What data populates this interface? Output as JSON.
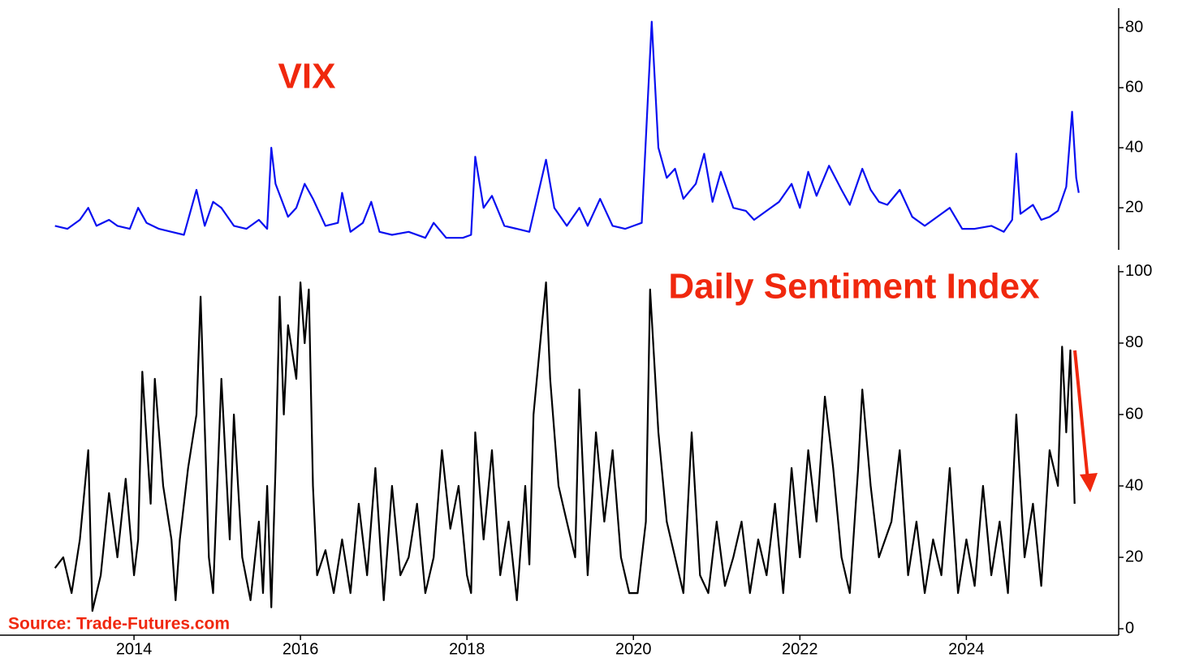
{
  "chart_data": [
    {
      "type": "line",
      "title": "VIX",
      "series": [
        {
          "name": "VIX",
          "color": "#0a10f0",
          "x": [
            2013.05,
            2013.2,
            2013.35,
            2013.45,
            2013.55,
            2013.7,
            2013.8,
            2013.95,
            2014.05,
            2014.15,
            2014.3,
            2014.45,
            2014.6,
            2014.75,
            2014.85,
            2014.95,
            2015.05,
            2015.2,
            2015.35,
            2015.5,
            2015.6,
            2015.65,
            2015.7,
            2015.85,
            2015.95,
            2016.05,
            2016.15,
            2016.3,
            2016.45,
            2016.5,
            2016.6,
            2016.75,
            2016.85,
            2016.95,
            2017.1,
            2017.3,
            2017.5,
            2017.6,
            2017.75,
            2017.95,
            2018.05,
            2018.1,
            2018.2,
            2018.3,
            2018.45,
            2018.6,
            2018.75,
            2018.85,
            2018.95,
            2019.05,
            2019.2,
            2019.35,
            2019.45,
            2019.6,
            2019.75,
            2019.9,
            2020.0,
            2020.1,
            2020.18,
            2020.22,
            2020.3,
            2020.4,
            2020.5,
            2020.6,
            2020.75,
            2020.85,
            2020.95,
            2021.05,
            2021.2,
            2021.35,
            2021.45,
            2021.6,
            2021.75,
            2021.9,
            2022.0,
            2022.1,
            2022.2,
            2022.35,
            2022.5,
            2022.6,
            2022.75,
            2022.85,
            2022.95,
            2023.05,
            2023.2,
            2023.35,
            2023.5,
            2023.7,
            2023.8,
            2023.95,
            2024.1,
            2024.3,
            2024.45,
            2024.55,
            2024.6,
            2024.65,
            2024.8,
            2024.9,
            2025.0,
            2025.1,
            2025.2,
            2025.27,
            2025.32,
            2025.35
          ],
          "values": [
            14,
            13,
            16,
            20,
            14,
            16,
            14,
            13,
            20,
            15,
            13,
            12,
            11,
            26,
            14,
            22,
            20,
            14,
            13,
            16,
            13,
            40,
            28,
            17,
            20,
            28,
            23,
            14,
            15,
            25,
            12,
            15,
            22,
            12,
            11,
            12,
            10,
            15,
            10,
            10,
            11,
            37,
            20,
            24,
            14,
            13,
            12,
            24,
            36,
            20,
            14,
            20,
            14,
            23,
            14,
            13,
            14,
            15,
            60,
            82,
            40,
            30,
            33,
            23,
            28,
            38,
            22,
            32,
            20,
            19,
            16,
            19,
            22,
            28,
            20,
            32,
            24,
            34,
            26,
            21,
            33,
            26,
            22,
            21,
            26,
            17,
            14,
            18,
            20,
            13,
            13,
            14,
            12,
            16,
            38,
            18,
            21,
            16,
            17,
            19,
            27,
            52,
            30,
            25
          ]
        }
      ],
      "xlim": [
        2012.39,
        2025.83
      ],
      "ylim": [
        6,
        86.5
      ],
      "yticks": [
        20,
        40,
        60,
        80
      ]
    },
    {
      "type": "line",
      "title": "Daily Sentiment Index",
      "annotation": "Source: Trade-Futures.com",
      "series": [
        {
          "name": "Daily Sentiment Index",
          "color": "#000000",
          "x": [
            2013.05,
            2013.15,
            2013.25,
            2013.35,
            2013.45,
            2013.5,
            2013.6,
            2013.7,
            2013.8,
            2013.9,
            2014.0,
            2014.05,
            2014.1,
            2014.2,
            2014.25,
            2014.35,
            2014.45,
            2014.5,
            2014.55,
            2014.65,
            2014.75,
            2014.8,
            2014.9,
            2014.95,
            2015.05,
            2015.15,
            2015.2,
            2015.3,
            2015.4,
            2015.5,
            2015.55,
            2015.6,
            2015.65,
            2015.7,
            2015.75,
            2015.8,
            2015.85,
            2015.95,
            2016.0,
            2016.05,
            2016.1,
            2016.15,
            2016.2,
            2016.3,
            2016.4,
            2016.5,
            2016.6,
            2016.7,
            2016.8,
            2016.9,
            2017.0,
            2017.1,
            2017.2,
            2017.3,
            2017.4,
            2017.5,
            2017.6,
            2017.7,
            2017.8,
            2017.9,
            2018.0,
            2018.05,
            2018.1,
            2018.2,
            2018.3,
            2018.4,
            2018.5,
            2018.6,
            2018.7,
            2018.75,
            2018.8,
            2018.9,
            2018.95,
            2019.0,
            2019.1,
            2019.2,
            2019.3,
            2019.35,
            2019.45,
            2019.55,
            2019.65,
            2019.75,
            2019.85,
            2019.95,
            2020.05,
            2020.15,
            2020.2,
            2020.3,
            2020.4,
            2020.5,
            2020.6,
            2020.7,
            2020.8,
            2020.9,
            2021.0,
            2021.1,
            2021.2,
            2021.3,
            2021.4,
            2021.5,
            2021.6,
            2021.7,
            2021.8,
            2021.9,
            2022.0,
            2022.1,
            2022.2,
            2022.3,
            2022.4,
            2022.5,
            2022.6,
            2022.7,
            2022.75,
            2022.85,
            2022.95,
            2023.1,
            2023.2,
            2023.3,
            2023.4,
            2023.5,
            2023.6,
            2023.7,
            2023.8,
            2023.9,
            2024.0,
            2024.1,
            2024.2,
            2024.3,
            2024.4,
            2024.5,
            2024.6,
            2024.7,
            2024.8,
            2024.9,
            2025.0,
            2025.1,
            2025.15,
            2025.2,
            2025.25,
            2025.3
          ],
          "values": [
            17,
            20,
            10,
            25,
            50,
            5,
            15,
            38,
            20,
            42,
            15,
            25,
            72,
            35,
            70,
            40,
            25,
            8,
            25,
            45,
            60,
            93,
            20,
            10,
            70,
            25,
            60,
            20,
            8,
            30,
            10,
            40,
            6,
            45,
            93,
            60,
            85,
            70,
            97,
            80,
            95,
            40,
            15,
            22,
            10,
            25,
            10,
            35,
            15,
            45,
            8,
            40,
            15,
            20,
            35,
            10,
            20,
            50,
            28,
            40,
            15,
            10,
            55,
            25,
            50,
            15,
            30,
            8,
            40,
            18,
            60,
            85,
            97,
            70,
            40,
            30,
            20,
            67,
            15,
            55,
            30,
            50,
            20,
            10,
            10,
            30,
            95,
            55,
            30,
            20,
            10,
            55,
            15,
            10,
            30,
            12,
            20,
            30,
            10,
            25,
            15,
            35,
            10,
            45,
            20,
            50,
            30,
            65,
            45,
            20,
            10,
            45,
            67,
            40,
            20,
            30,
            50,
            15,
            30,
            10,
            25,
            15,
            45,
            10,
            25,
            12,
            40,
            15,
            30,
            10,
            60,
            20,
            35,
            12,
            50,
            40,
            79,
            55,
            78,
            35
          ]
        }
      ],
      "xlim": [
        2012.39,
        2025.83
      ],
      "xticks": [
        2014,
        2016,
        2018,
        2020,
        2022,
        2024
      ],
      "ylim": [
        -1.8,
        101.8
      ],
      "yticks": [
        0,
        20,
        40,
        60,
        80,
        100
      ]
    }
  ]
}
